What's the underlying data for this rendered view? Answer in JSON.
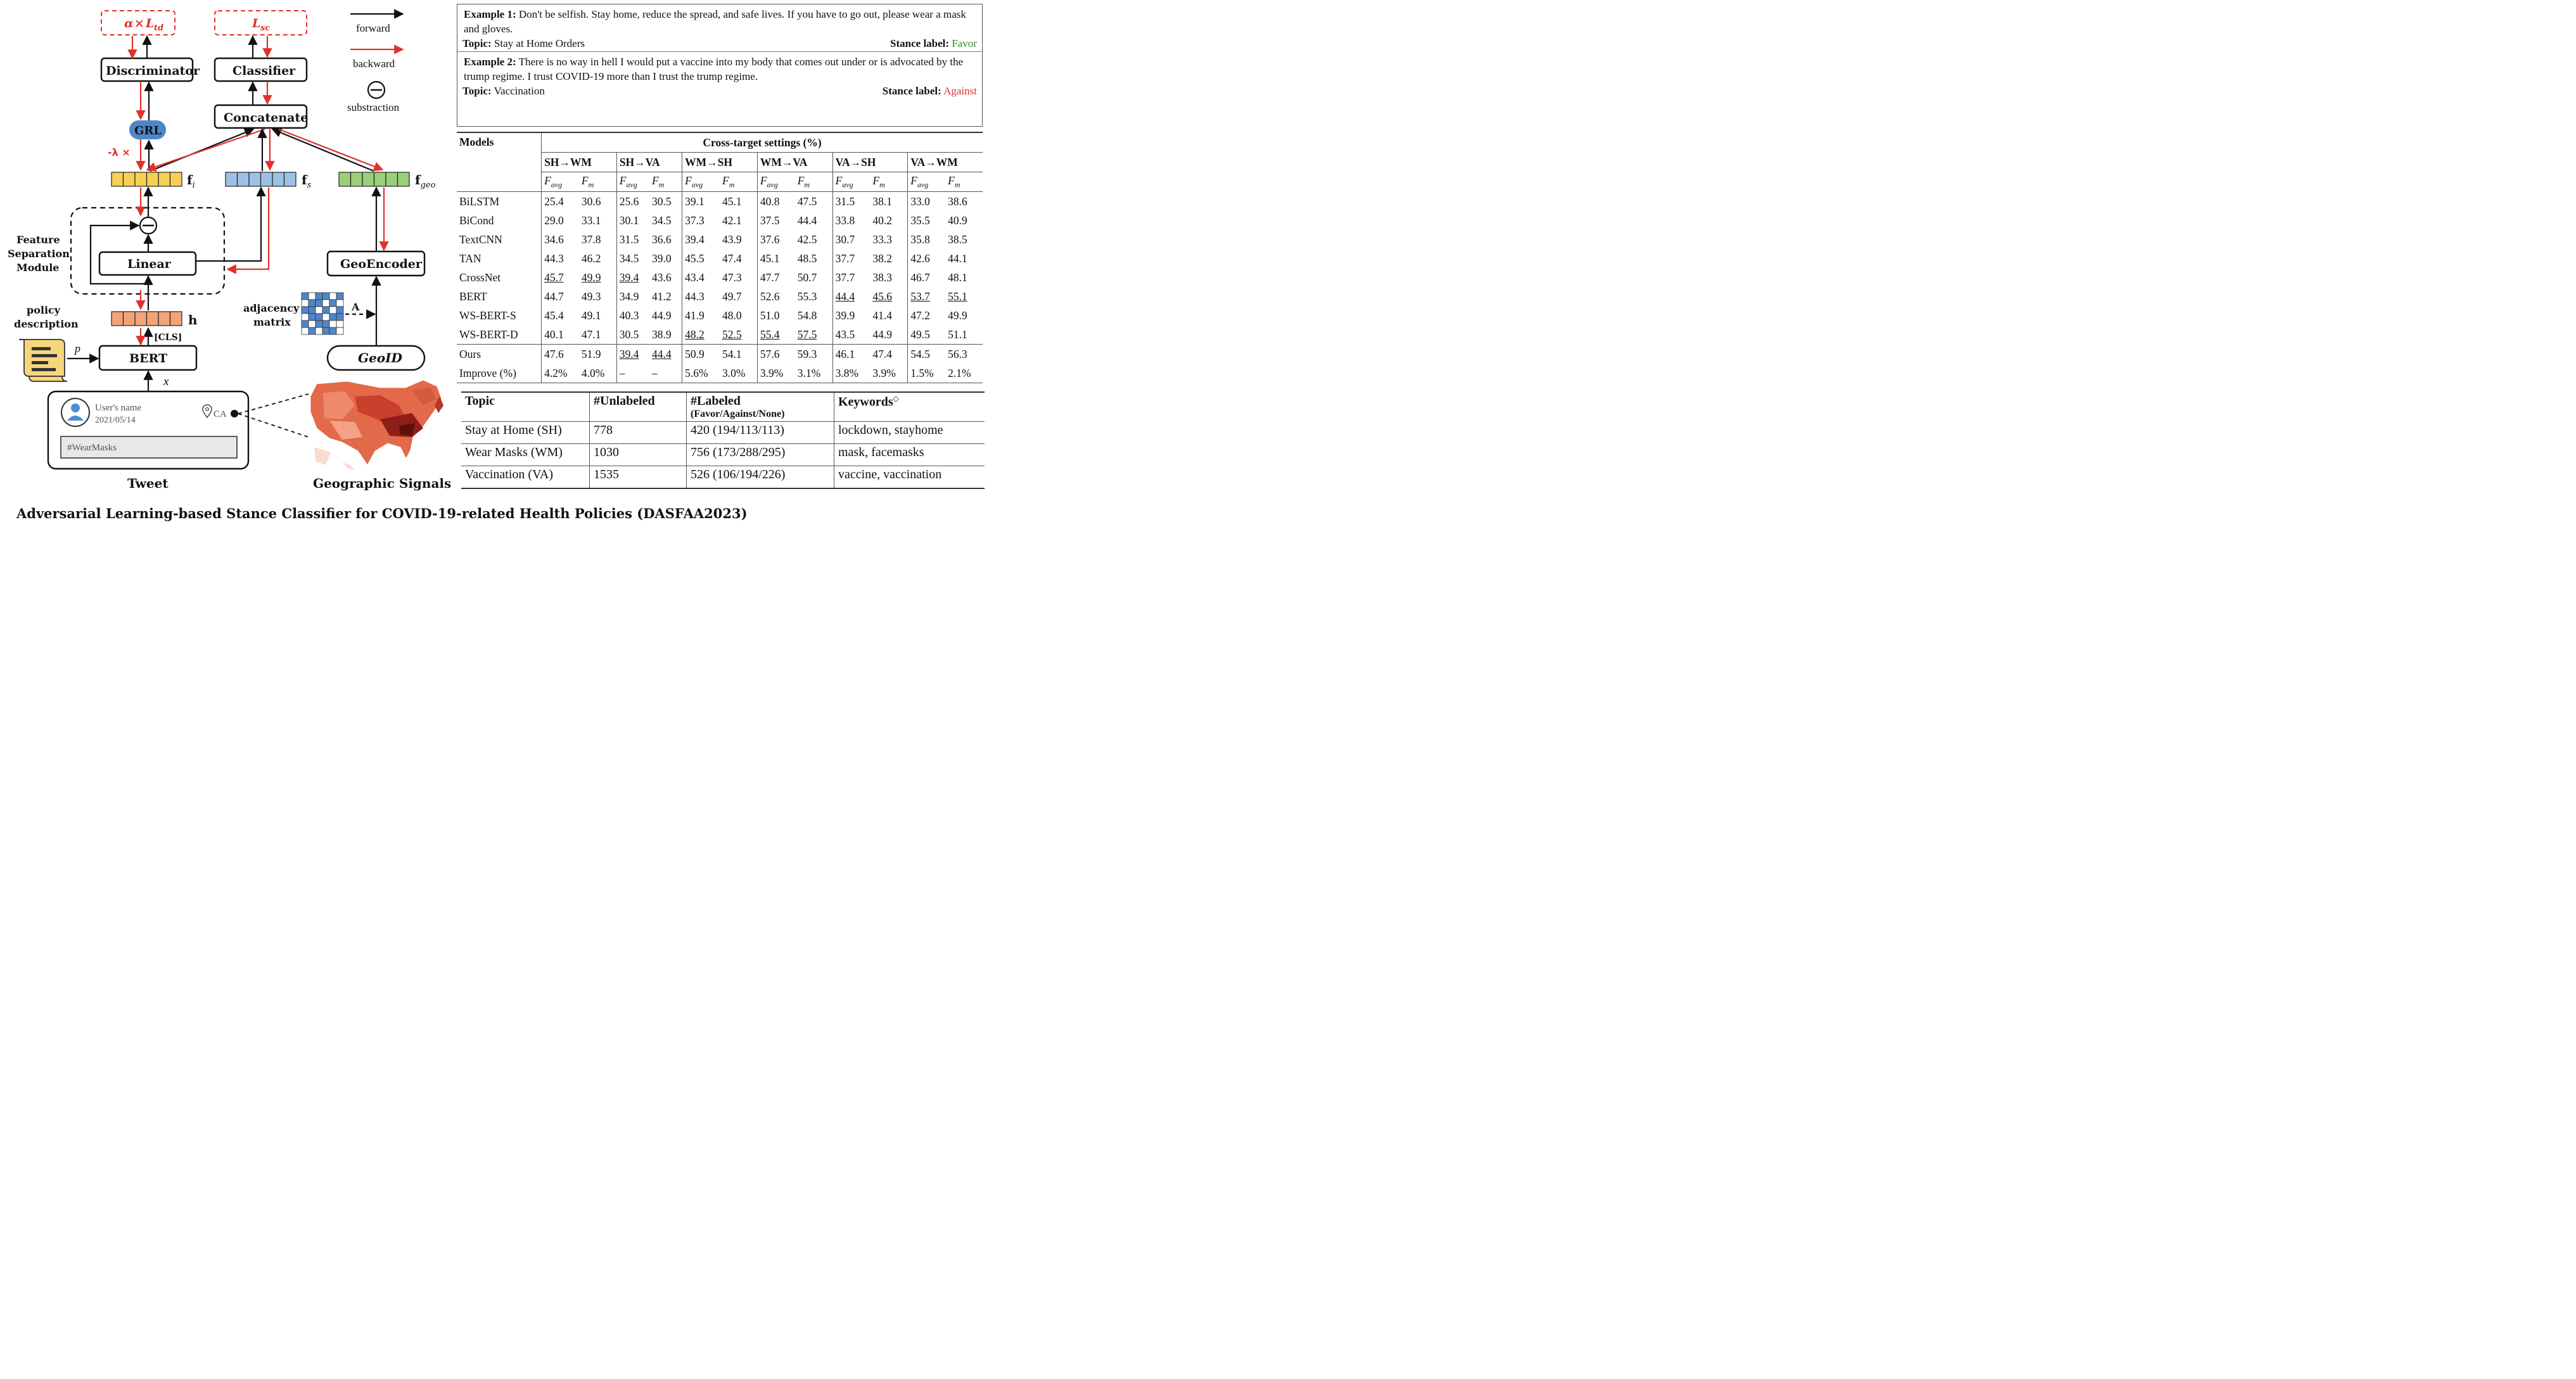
{
  "diagram": {
    "loss_td": {
      "alpha": "α",
      "times": "×",
      "loss": "L",
      "sub": "td"
    },
    "loss_sc": {
      "loss": "L",
      "sub": "sc"
    },
    "discriminator": "Discriminator",
    "classifier": "Classifier",
    "concatenate": "Concatenate",
    "grl": "GRL",
    "lambda": "-λ ×",
    "fi": {
      "main": "f",
      "sub": "i"
    },
    "fs": {
      "main": "f",
      "sub": "s"
    },
    "fgeo": {
      "main": "f",
      "sub": "geo"
    },
    "feature_sep": [
      "Feature",
      "Separation",
      "Module"
    ],
    "linear": "Linear",
    "geoencoder": "GeoEncoder",
    "h": "h",
    "cls": "[CLS]",
    "policy": [
      "policy",
      "description"
    ],
    "p": "p",
    "bert": "BERT",
    "x": "x",
    "adjacency": [
      "adjacency",
      "matrix"
    ],
    "A": "A",
    "geoid": "GeoID",
    "tweet": {
      "user": "User's name",
      "date": "2021/05/14",
      "loc": "CA",
      "text": "#WearMasks",
      "label": "Tweet"
    },
    "geo_label": "Geographic Signals",
    "legend": {
      "forward": "forward",
      "backward": "backward",
      "subtraction": "substraction"
    }
  },
  "examples": [
    {
      "head": "Example 1:",
      "text": "Don't be selfish. Stay home, reduce the spread, and safe lives. If you have to go out, please wear a mask and gloves.",
      "topic_label": "Topic:",
      "topic": "Stay at Home Orders",
      "stance_label": "Stance label:",
      "stance": "Favor"
    },
    {
      "head": "Example 2:",
      "text": "There is no way in hell I would put a vaccine into my body that comes out under or is advocated by the trump regime. I trust COVID-19 more than I trust the trump regime.",
      "topic_label": "Topic:",
      "topic": "Vaccination",
      "stance_label": "Stance label:",
      "stance": "Against"
    }
  ],
  "results": {
    "models_header": "Models",
    "settings_header": "Cross-target settings (%)",
    "settings": [
      "SH→WM",
      "SH→VA",
      "WM→SH",
      "WM→VA",
      "VA→SH",
      "VA→WM"
    ],
    "metrics": [
      {
        "m": "F",
        "s": "avg"
      },
      {
        "m": "F",
        "s": "m"
      }
    ],
    "rows": [
      {
        "name": "BiLSTM",
        "values": [
          "25.4",
          "30.6",
          "25.6",
          "30.5",
          "39.1",
          "45.1",
          "40.8",
          "47.5",
          "31.5",
          "38.1",
          "33.0",
          "38.6"
        ]
      },
      {
        "name": "BiCond",
        "values": [
          "29.0",
          "33.1",
          "30.1",
          "34.5",
          "37.3",
          "42.1",
          "37.5",
          "44.4",
          "33.8",
          "40.2",
          "35.5",
          "40.9"
        ]
      },
      {
        "name": "TextCNN",
        "values": [
          "34.6",
          "37.8",
          "31.5",
          "36.6",
          "39.4",
          "43.9",
          "37.6",
          "42.5",
          "30.7",
          "33.3",
          "35.8",
          "38.5"
        ]
      },
      {
        "name": "TAN",
        "values": [
          "44.3",
          "46.2",
          "34.5",
          "39.0",
          "45.5",
          "47.4",
          "45.1",
          "48.5",
          "37.7",
          "38.2",
          "42.6",
          "44.1"
        ]
      },
      {
        "name": "CrossNet",
        "values": [
          "45.7",
          "49.9",
          "39.4",
          "43.6",
          "43.4",
          "47.3",
          "47.7",
          "50.7",
          "37.7",
          "38.3",
          "46.7",
          "48.1"
        ],
        "underline": [
          0,
          1,
          2
        ]
      },
      {
        "name": "BERT",
        "values": [
          "44.7",
          "49.3",
          "34.9",
          "41.2",
          "44.3",
          "49.7",
          "52.6",
          "55.3",
          "44.4",
          "45.6",
          "53.7",
          "55.1"
        ],
        "underline": [
          8,
          9,
          10,
          11
        ]
      },
      {
        "name": "WS-BERT-S",
        "values": [
          "45.4",
          "49.1",
          "40.3",
          "44.9",
          "41.9",
          "48.0",
          "51.0",
          "54.8",
          "39.9",
          "41.4",
          "47.2",
          "49.9"
        ],
        "bold": [
          2,
          3
        ]
      },
      {
        "name": "WS-BERT-D",
        "values": [
          "40.1",
          "47.1",
          "30.5",
          "38.9",
          "48.2",
          "52.5",
          "55.4",
          "57.5",
          "43.5",
          "44.9",
          "49.5",
          "51.1"
        ],
        "underline": [
          4,
          5,
          6,
          7
        ]
      },
      {
        "name": "Ours",
        "values": [
          "47.6",
          "51.9",
          "39.4",
          "44.4",
          "50.9",
          "54.1",
          "57.6",
          "59.3",
          "46.1",
          "47.4",
          "54.5",
          "56.3"
        ],
        "bold": [
          0,
          1,
          4,
          5,
          6,
          7,
          8,
          9,
          10,
          11
        ],
        "underline": [
          2,
          3
        ]
      },
      {
        "name": "Improve (%)",
        "values": [
          "4.2%",
          "4.0%",
          "–",
          "–",
          "5.6%",
          "3.0%",
          "3.9%",
          "3.1%",
          "3.8%",
          "3.9%",
          "1.5%",
          "2.1%"
        ]
      }
    ]
  },
  "topics": {
    "headers": {
      "topic": "Topic",
      "unlabeled": "#Unlabeled",
      "labeled": "#Labeled",
      "labeled_sub": "(Favor/Against/None)",
      "keywords": "Keywords",
      "keywords_sup": "◇"
    },
    "rows": [
      {
        "topic": "Stay at Home (SH)",
        "unlabeled": "778",
        "labeled": "420 (194/113/113)",
        "keywords": "lockdown, stayhome"
      },
      {
        "topic": "Wear Masks (WM)",
        "unlabeled": "1030",
        "labeled": "756 (173/288/295)",
        "keywords": "mask, facemasks"
      },
      {
        "topic": "Vaccination (VA)",
        "unlabeled": "1535",
        "labeled": "526 (106/194/226)",
        "keywords": "vaccine, vaccination"
      }
    ]
  },
  "caption": "Adversarial Learning-based Stance Classifier for COVID-19-related Health Policies (DASFAA2023)",
  "colors": {
    "forward": "#111111",
    "backward": "#e0322a",
    "fi": "#f7cf55",
    "fs": "#9dc0e6",
    "fgeo": "#9bcf7a",
    "h": "#f2a378",
    "grl": "#4f86c9",
    "favor": "#2f8a2f",
    "against": "#e0322a"
  }
}
